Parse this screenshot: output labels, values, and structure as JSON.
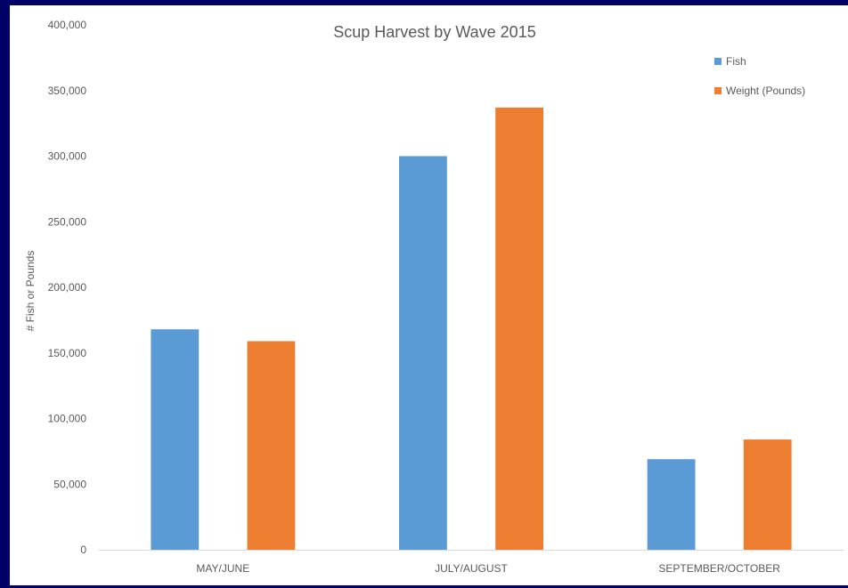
{
  "chart_data": {
    "type": "bar",
    "title": "Scup Harvest by Wave 2015",
    "xlabel": "",
    "ylabel": "# Fish or Pounds",
    "categories": [
      "MAY/JUNE",
      "JULY/AUGUST",
      "SEPTEMBER/OCTOBER"
    ],
    "series": [
      {
        "name": "Fish",
        "values": [
          168000,
          300000,
          69000
        ],
        "color": "#5B9BD5"
      },
      {
        "name": "Weight (Pounds)",
        "values": [
          159000,
          337000,
          84000
        ],
        "color": "#ED7D31"
      }
    ],
    "ylim": [
      0,
      400000
    ],
    "yticks": [
      0,
      50000,
      100000,
      150000,
      200000,
      250000,
      300000,
      350000,
      400000
    ],
    "ytick_labels": [
      "0",
      "50,000",
      "100,000",
      "150,000",
      "200,000",
      "250,000",
      "300,000",
      "350,000",
      "400,000"
    ],
    "grid": false,
    "legend_position": "top-right"
  }
}
